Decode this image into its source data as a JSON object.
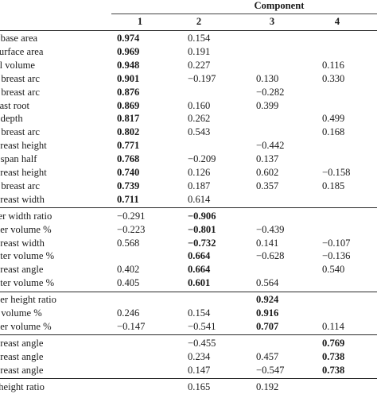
{
  "header": {
    "component_label": "Component",
    "columns": [
      "1",
      "2",
      "3",
      "4"
    ]
  },
  "groups": [
    {
      "rows": [
        {
          "label": "t base area",
          "values": [
            "0.974",
            "0.154",
            "",
            ""
          ],
          "bold": [
            true,
            false,
            false,
            false
          ]
        },
        {
          "label": "surface area",
          "values": [
            "0.969",
            "0.191",
            "",
            ""
          ],
          "bold": [
            true,
            false,
            false,
            false
          ]
        },
        {
          "label": "al volume",
          "values": [
            "0.948",
            "0.227",
            "",
            "0.116"
          ],
          "bold": [
            true,
            false,
            false,
            false
          ]
        },
        {
          "label": "r breast arc",
          "values": [
            "0.901",
            "−0.197",
            "0.130",
            "0.330"
          ],
          "bold": [
            true,
            false,
            false,
            false
          ]
        },
        {
          "label": "r breast arc",
          "values": [
            "0.876",
            "",
            "−0.282",
            ""
          ],
          "bold": [
            true,
            false,
            false,
            false
          ]
        },
        {
          "label": "east root",
          "values": [
            "0.869",
            "0.160",
            "0.399",
            ""
          ],
          "bold": [
            true,
            false,
            false,
            false
          ]
        },
        {
          "label": "t depth",
          "values": [
            "0.817",
            "0.262",
            "",
            "0.499"
          ],
          "bold": [
            true,
            false,
            false,
            false
          ]
        },
        {
          "label": "r breast arc",
          "values": [
            "0.802",
            "0.543",
            "",
            "0.168"
          ],
          "bold": [
            true,
            false,
            false,
            false
          ]
        },
        {
          "label": "breast height",
          "values": [
            "0.771",
            "",
            "−0.442",
            ""
          ],
          "bold": [
            true,
            false,
            false,
            false
          ]
        },
        {
          "label": "t span half",
          "values": [
            "0.768",
            "−0.209",
            "0.137",
            ""
          ],
          "bold": [
            true,
            false,
            false,
            false
          ]
        },
        {
          "label": "breast height",
          "values": [
            "0.740",
            "0.126",
            "0.602",
            "−0.158"
          ],
          "bold": [
            true,
            false,
            false,
            false
          ]
        },
        {
          "label": "r breast arc",
          "values": [
            "0.739",
            "0.187",
            "0.357",
            "0.185"
          ],
          "bold": [
            true,
            false,
            false,
            false
          ]
        },
        {
          "label": "breast width",
          "values": [
            "0.711",
            "0.614",
            "",
            ""
          ],
          "bold": [
            true,
            false,
            false,
            false
          ]
        }
      ]
    },
    {
      "rows": [
        {
          "label": "ter width ratio",
          "values": [
            "−0.291",
            "−0.906",
            "",
            ""
          ],
          "bold": [
            false,
            true,
            false,
            false
          ]
        },
        {
          "label": "ner volume %",
          "values": [
            "−0.223",
            "−0.801",
            "−0.439",
            ""
          ],
          "bold": [
            false,
            true,
            false,
            false
          ]
        },
        {
          "label": "breast width",
          "values": [
            "0.568",
            "−0.732",
            "0.141",
            "−0.107"
          ],
          "bold": [
            false,
            true,
            false,
            false
          ]
        },
        {
          "label": "uter volume %",
          "values": [
            "",
            "0.664",
            "−0.628",
            "−0.136"
          ],
          "bold": [
            false,
            true,
            false,
            false
          ]
        },
        {
          "label": "breast angle",
          "values": [
            "0.402",
            "0.664",
            "",
            "0.540"
          ],
          "bold": [
            false,
            true,
            false,
            false
          ]
        },
        {
          "label": "uter volume %",
          "values": [
            "0.405",
            "0.601",
            "0.564",
            ""
          ],
          "bold": [
            false,
            true,
            false,
            false
          ]
        }
      ]
    },
    {
      "rows": [
        {
          "label": "per height ratio",
          "values": [
            "",
            "",
            "0.924",
            ""
          ],
          "bold": [
            false,
            false,
            true,
            false
          ]
        },
        {
          "label": "r volume %",
          "values": [
            "0.246",
            "0.154",
            "0.916",
            ""
          ],
          "bold": [
            false,
            false,
            true,
            false
          ]
        },
        {
          "label": "ner volume %",
          "values": [
            "−0.147",
            "−0.541",
            "0.707",
            "0.114"
          ],
          "bold": [
            false,
            false,
            true,
            false
          ]
        }
      ]
    },
    {
      "rows": [
        {
          "label": "breast angle",
          "values": [
            "",
            "−0.455",
            "",
            "0.769"
          ],
          "bold": [
            false,
            false,
            false,
            true
          ]
        },
        {
          "label": " breast angle",
          "values": [
            "",
            "0.234",
            "0.457",
            "0.738"
          ],
          "bold": [
            false,
            false,
            false,
            true
          ]
        },
        {
          "label": " breast angle",
          "values": [
            "",
            "0.147",
            "−0.547",
            "0.738"
          ],
          "bold": [
            false,
            false,
            false,
            true
          ]
        }
      ]
    },
    {
      "rows": [
        {
          "label": "-height ratio",
          "values": [
            "",
            "0.165",
            "0.192",
            ""
          ],
          "bold": [
            false,
            false,
            false,
            false
          ]
        }
      ]
    }
  ]
}
